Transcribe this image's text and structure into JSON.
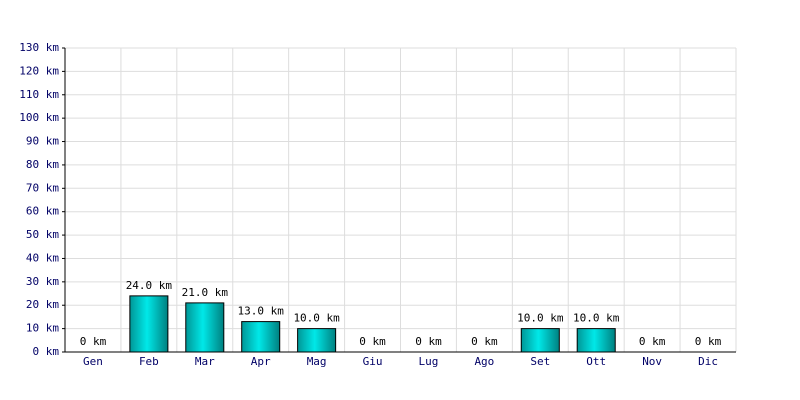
{
  "chart_data": {
    "type": "bar",
    "categories": [
      "Gen",
      "Feb",
      "Mar",
      "Apr",
      "Mag",
      "Giu",
      "Lug",
      "Ago",
      "Set",
      "Ott",
      "Nov",
      "Dic"
    ],
    "values": [
      0,
      24,
      21,
      13,
      10,
      0,
      0,
      0,
      10,
      10,
      0,
      0
    ],
    "value_labels": [
      "0 km",
      "24.0 km",
      "21.0 km",
      "13.0 km",
      "10.0 km",
      "0 km",
      "0 km",
      "0 km",
      "10.0 km",
      "10.0 km",
      "0 km",
      "0 km"
    ],
    "color": "#00e8e8",
    "ylim": [
      0,
      130
    ],
    "yticks": [
      {
        "value": 0,
        "label": "0 km"
      },
      {
        "value": 10,
        "label": "10 km"
      },
      {
        "value": 20,
        "label": "20 km"
      },
      {
        "value": 30,
        "label": "30 km"
      },
      {
        "value": 40,
        "label": "40 km"
      },
      {
        "value": 50,
        "label": "50 km"
      },
      {
        "value": 60,
        "label": "60 km"
      },
      {
        "value": 70,
        "label": "70 km"
      },
      {
        "value": 80,
        "label": "80 km"
      },
      {
        "value": 90,
        "label": "90 km"
      },
      {
        "value": 100,
        "label": "100 km"
      },
      {
        "value": 110,
        "label": "110 km"
      },
      {
        "value": 120,
        "label": "120 km"
      },
      {
        "value": 130,
        "label": "130 km"
      }
    ],
    "grid": true
  }
}
